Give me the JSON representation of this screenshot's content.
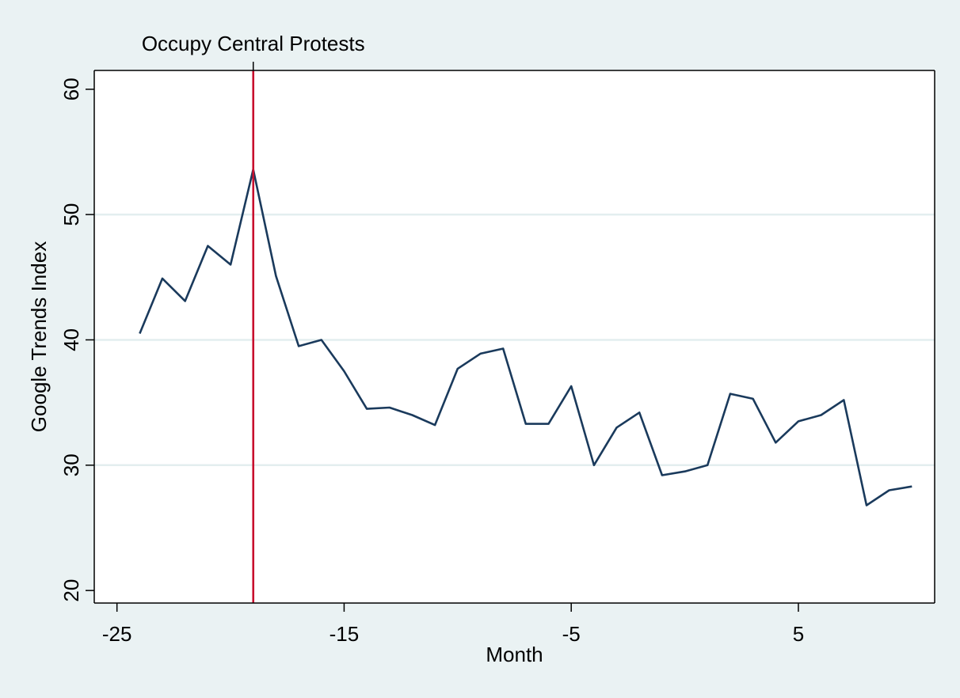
{
  "chart_data": {
    "type": "line",
    "title": "",
    "xlabel": "Month",
    "ylabel": "Google Trends Index",
    "xlim": [
      -26,
      11
    ],
    "ylim": [
      19,
      61.5
    ],
    "x_ticks": [
      -25,
      -15,
      -5,
      5
    ],
    "y_ticks": [
      20,
      30,
      40,
      50,
      60
    ],
    "x_tick_labels": [
      "-25",
      "-15",
      "-5",
      "5"
    ],
    "y_tick_labels": [
      "20",
      "30",
      "40",
      "50",
      "60"
    ],
    "grid": "horizontal",
    "series": [
      {
        "color": "#1a3a5c",
        "x": [
          -24,
          -23,
          -22,
          -21,
          -20,
          -19,
          -18,
          -17,
          -16,
          -15,
          -14,
          -13,
          -12,
          -11,
          -10,
          -9,
          -8,
          -7,
          -6,
          -5,
          -4,
          -3,
          -2,
          -1,
          0,
          1,
          2,
          3,
          4,
          5,
          6,
          7,
          8,
          9,
          10
        ],
        "y": [
          40.5,
          44.9,
          43.1,
          47.5,
          46.0,
          53.6,
          45.1,
          39.5,
          40.0,
          37.5,
          34.5,
          34.6,
          34.0,
          33.2,
          37.7,
          38.9,
          39.3,
          33.3,
          33.3,
          36.3,
          30.0,
          33.0,
          34.2,
          29.2,
          29.5,
          30.0,
          35.7,
          35.3,
          31.8,
          33.5,
          34.0,
          35.2,
          26.8,
          28.0,
          28.3
        ]
      }
    ],
    "annotations": [
      {
        "text": "Occupy Central Protests",
        "x": -19,
        "color": "#c8102e"
      }
    ],
    "colors": {
      "background": "#eaf2f3",
      "plot_background": "#ffffff",
      "gridline": "#e3eeef",
      "vline": "#c8102e"
    }
  }
}
